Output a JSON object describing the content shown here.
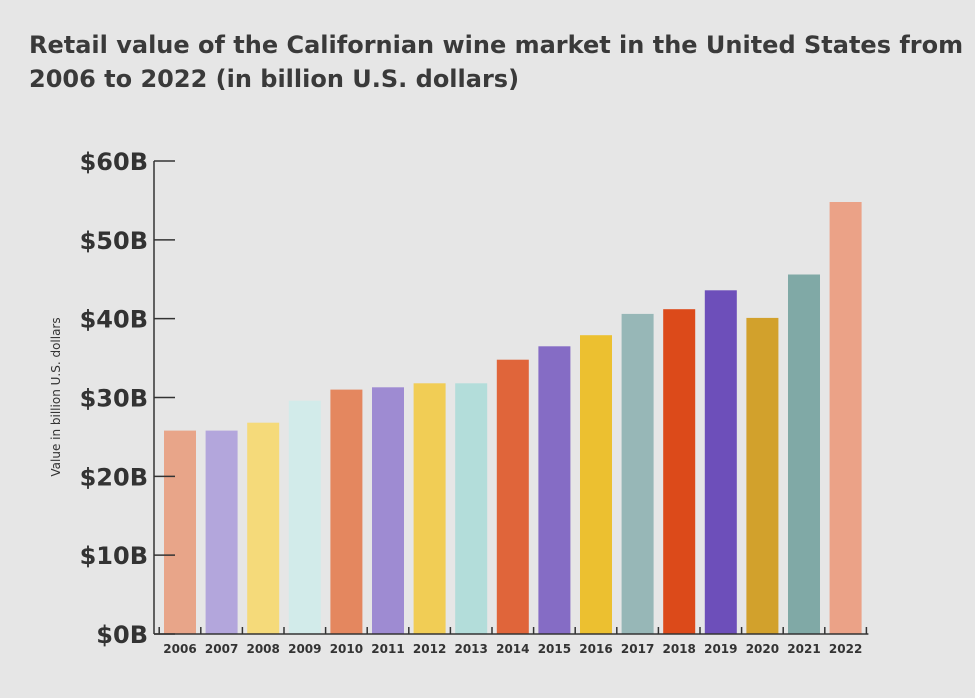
{
  "chart_data": {
    "type": "bar",
    "title_line1": "Retail value of the Californian wine market in the United States from",
    "title_line2": "2006 to 2022 (in billion U.S. dollars)",
    "xlabel": "",
    "ylabel": "Value in billion U.S. dollars",
    "ylim": [
      0,
      60
    ],
    "yticks": [
      0,
      10,
      20,
      30,
      40,
      50,
      60
    ],
    "ytick_labels": [
      "$0B",
      "$10B",
      "$20B",
      "$30B",
      "$40B",
      "$50B",
      "$60B"
    ],
    "categories": [
      "2006",
      "2007",
      "2008",
      "2009",
      "2010",
      "2011",
      "2012",
      "2013",
      "2014",
      "2015",
      "2016",
      "2017",
      "2018",
      "2019",
      "2020",
      "2021",
      "2022"
    ],
    "values": [
      25.8,
      25.8,
      26.8,
      29.6,
      31.0,
      31.3,
      31.8,
      31.8,
      34.8,
      36.5,
      37.9,
      40.6,
      41.2,
      43.6,
      40.1,
      45.6,
      54.8
    ],
    "colors": [
      "#e8a589",
      "#b3a6dc",
      "#f5da7a",
      "#d2ebea",
      "#e4875f",
      "#9e8bd2",
      "#f1cd55",
      "#b3ddda",
      "#e0653a",
      "#856cc5",
      "#ecc030",
      "#97b7b7",
      "#dc4a1a",
      "#6d4fba",
      "#d2a12c",
      "#80a9a6",
      "#eba287"
    ],
    "grid": false,
    "legend": "none"
  }
}
